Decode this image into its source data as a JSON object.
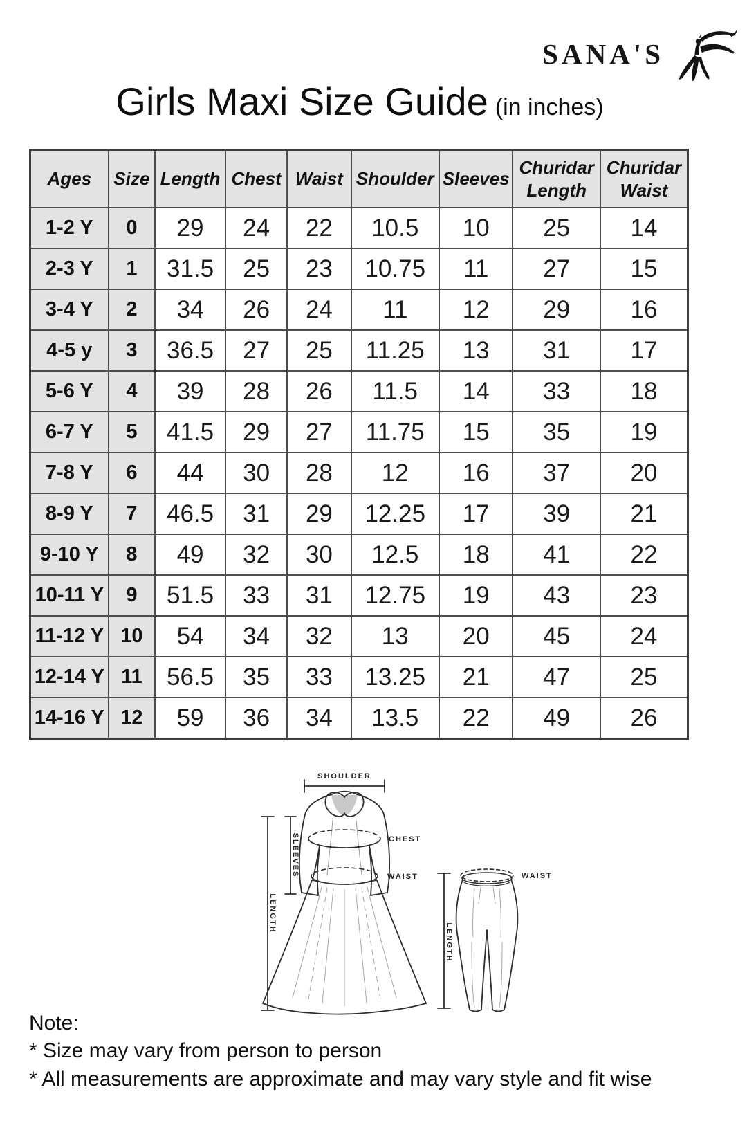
{
  "brand": {
    "name": "SANA'S",
    "icon": "dancing-woman-icon"
  },
  "title": {
    "main": "Girls Maxi Size Guide",
    "suffix": "(in inches)"
  },
  "size_table": {
    "headers": [
      "Ages",
      "Size",
      "Length",
      "Chest",
      "Waist",
      "Shoulder",
      "Sleeves",
      "Churidar Length",
      "Churidar Waist"
    ],
    "rows": [
      [
        "1-2 Y",
        "0",
        "29",
        "24",
        "22",
        "10.5",
        "10",
        "25",
        "14"
      ],
      [
        "2-3 Y",
        "1",
        "31.5",
        "25",
        "23",
        "10.75",
        "11",
        "27",
        "15"
      ],
      [
        "3-4 Y",
        "2",
        "34",
        "26",
        "24",
        "11",
        "12",
        "29",
        "16"
      ],
      [
        "4-5 y",
        "3",
        "36.5",
        "27",
        "25",
        "11.25",
        "13",
        "31",
        "17"
      ],
      [
        "5-6 Y",
        "4",
        "39",
        "28",
        "26",
        "11.5",
        "14",
        "33",
        "18"
      ],
      [
        "6-7 Y",
        "5",
        "41.5",
        "29",
        "27",
        "11.75",
        "15",
        "35",
        "19"
      ],
      [
        "7-8 Y",
        "6",
        "44",
        "30",
        "28",
        "12",
        "16",
        "37",
        "20"
      ],
      [
        "8-9 Y",
        "7",
        "46.5",
        "31",
        "29",
        "12.25",
        "17",
        "39",
        "21"
      ],
      [
        "9-10 Y",
        "8",
        "49",
        "32",
        "30",
        "12.5",
        "18",
        "41",
        "22"
      ],
      [
        "10-11 Y",
        "9",
        "51.5",
        "33",
        "31",
        "12.75",
        "19",
        "43",
        "23"
      ],
      [
        "11-12 Y",
        "10",
        "54",
        "34",
        "32",
        "13",
        "20",
        "45",
        "24"
      ],
      [
        "12-14 Y",
        "11",
        "56.5",
        "35",
        "33",
        "13.25",
        "21",
        "47",
        "25"
      ],
      [
        "14-16 Y",
        "12",
        "59",
        "36",
        "34",
        "13.5",
        "22",
        "49",
        "26"
      ]
    ]
  },
  "diagram": {
    "dress": {
      "shoulder_label": "SHOULDER",
      "sleeves_label": "SLEEVES",
      "length_label": "LENGTH",
      "chest_label": "CHEST",
      "waist_label": "WAIST"
    },
    "churidar": {
      "waist_label": "WAIST",
      "length_label": "LENGTH"
    }
  },
  "notes": {
    "heading": "Note:",
    "items": [
      "* Size may vary from person to person",
      "* All measurements are approximate and may vary style and fit wise"
    ]
  },
  "colors": {
    "header_bg": "#e3e3e3",
    "table_border": "#4d4d4d",
    "text": "#111111",
    "background": "#ffffff"
  }
}
